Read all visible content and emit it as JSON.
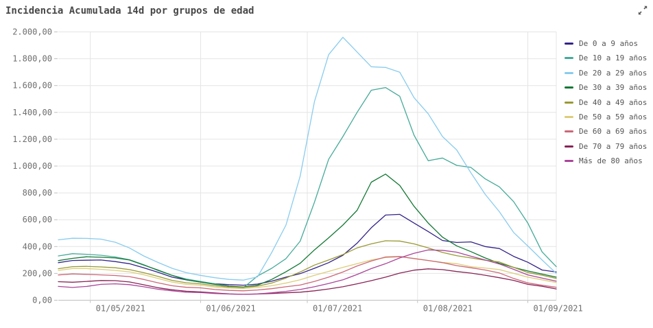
{
  "header": {
    "title": "Incidencia Acumulada 14d por grupos de edad"
  },
  "icons": {
    "expand_icon_color": "#595959"
  },
  "chart_data": {
    "type": "line",
    "title": "Incidencia Acumulada 14d por grupos de edad",
    "xlabel": "",
    "ylabel": "",
    "grid": true,
    "legend_position": "right",
    "x_total_days": 140,
    "x": [
      "22/04/2021",
      "26/04/2021",
      "30/04/2021",
      "04/05/2021",
      "08/05/2021",
      "12/05/2021",
      "16/05/2021",
      "20/05/2021",
      "24/05/2021",
      "28/05/2021",
      "01/06/2021",
      "05/06/2021",
      "09/06/2021",
      "13/06/2021",
      "17/06/2021",
      "21/06/2021",
      "25/06/2021",
      "29/06/2021",
      "03/07/2021",
      "07/07/2021",
      "11/07/2021",
      "15/07/2021",
      "19/07/2021",
      "23/07/2021",
      "27/07/2021",
      "31/07/2021",
      "04/08/2021",
      "08/08/2021",
      "12/08/2021",
      "16/08/2021",
      "20/08/2021",
      "24/08/2021",
      "28/08/2021",
      "01/09/2021",
      "05/09/2021",
      "09/09/2021"
    ],
    "x_ticks": [
      {
        "label": "01/05/2021",
        "day": 9
      },
      {
        "label": "01/06/2021",
        "day": 40
      },
      {
        "label": "01/07/2021",
        "day": 70
      },
      {
        "label": "01/08/2021",
        "day": 101
      },
      {
        "label": "01/09/2021",
        "day": 132
      }
    ],
    "y_axis": {
      "min": 0,
      "max": 2000,
      "step": 200,
      "tick_labels": [
        "0,00",
        "200,00",
        "400,00",
        "600,00",
        "800,00",
        "1.000,00",
        "1.200,00",
        "1.400,00",
        "1.600,00",
        "1.800,00",
        "2.000,00"
      ]
    },
    "series": [
      {
        "name": "De 0 a 9 años",
        "color": "#332288",
        "values": [
          280,
          296,
          298,
          300,
          288,
          272,
          242,
          208,
          172,
          152,
          135,
          123,
          116,
          112,
          120,
          142,
          172,
          198,
          238,
          280,
          335,
          425,
          540,
          635,
          640,
          575,
          512,
          445,
          430,
          435,
          400,
          385,
          327,
          283,
          225,
          210
        ]
      },
      {
        "name": "De 10 a 19 años",
        "color": "#44AA99",
        "values": [
          330,
          347,
          342,
          335,
          322,
          302,
          265,
          222,
          185,
          158,
          140,
          122,
          105,
          92,
          180,
          238,
          310,
          440,
          730,
          1050,
          1220,
          1400,
          1565,
          1585,
          1520,
          1230,
          1040,
          1060,
          1005,
          990,
          905,
          845,
          735,
          575,
          360,
          250
        ]
      },
      {
        "name": "De 20 a 29 años",
        "color": "#88CCEE",
        "values": [
          450,
          462,
          461,
          455,
          432,
          390,
          330,
          282,
          238,
          205,
          185,
          168,
          155,
          150,
          174,
          355,
          560,
          925,
          1480,
          1830,
          1960,
          1850,
          1740,
          1735,
          1700,
          1510,
          1390,
          1220,
          1120,
          950,
          790,
          660,
          505,
          404,
          300,
          200
        ]
      },
      {
        "name": "De 30 a 39 años",
        "color": "#117733",
        "values": [
          295,
          312,
          324,
          320,
          315,
          300,
          262,
          225,
          185,
          152,
          135,
          118,
          105,
          98,
          112,
          155,
          212,
          275,
          375,
          465,
          560,
          670,
          880,
          940,
          855,
          700,
          575,
          470,
          405,
          362,
          315,
          275,
          245,
          218,
          195,
          172
        ]
      },
      {
        "name": "De 40 a 49 años",
        "color": "#999933",
        "values": [
          235,
          250,
          252,
          248,
          242,
          228,
          205,
          178,
          148,
          130,
          122,
          108,
          98,
          95,
          105,
          128,
          165,
          210,
          262,
          300,
          340,
          390,
          420,
          443,
          441,
          420,
          390,
          356,
          332,
          315,
          298,
          285,
          245,
          206,
          186,
          162
        ]
      },
      {
        "name": "De 50 a 59 años",
        "color": "#DDCC77",
        "values": [
          222,
          236,
          236,
          230,
          222,
          212,
          190,
          162,
          135,
          118,
          112,
          98,
          90,
          88,
          95,
          108,
          128,
          152,
          185,
          215,
          245,
          272,
          300,
          318,
          324,
          312,
          296,
          282,
          272,
          250,
          240,
          228,
          200,
          172,
          152,
          132
        ]
      },
      {
        "name": "De 60 a 69 años",
        "color": "#CC6677",
        "values": [
          188,
          196,
          193,
          189,
          184,
          176,
          155,
          130,
          108,
          96,
          92,
          80,
          73,
          70,
          76,
          86,
          100,
          113,
          140,
          172,
          210,
          255,
          292,
          322,
          326,
          310,
          296,
          280,
          258,
          242,
          225,
          203,
          162,
          129,
          112,
          96
        ]
      },
      {
        "name": "De 70 a 79 años",
        "color": "#882255",
        "values": [
          138,
          134,
          140,
          147,
          146,
          136,
          115,
          93,
          78,
          67,
          62,
          54,
          47,
          44,
          46,
          50,
          55,
          60,
          70,
          84,
          100,
          122,
          146,
          172,
          202,
          224,
          234,
          228,
          214,
          202,
          186,
          168,
          148,
          118,
          104,
          84
        ]
      },
      {
        "name": "Más de 80 años",
        "color": "#AA4499",
        "values": [
          103,
          95,
          103,
          118,
          122,
          116,
          100,
          82,
          70,
          60,
          57,
          50,
          46,
          44,
          47,
          55,
          66,
          80,
          100,
          125,
          152,
          192,
          236,
          272,
          315,
          350,
          375,
          372,
          358,
          328,
          300,
          270,
          230,
          189,
          165,
          142
        ]
      }
    ]
  }
}
